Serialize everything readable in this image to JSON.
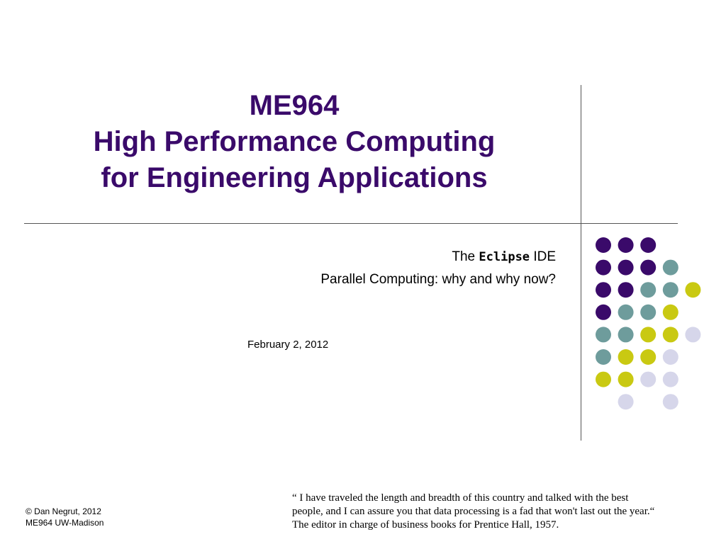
{
  "title": {
    "line1": "ME964",
    "line2": "High Performance Computing",
    "line3": "for Engineering Applications"
  },
  "subtitle": {
    "line1_prefix": "The ",
    "line1_mono": "Eclipse",
    "line1_suffix": " IDE",
    "line2": "Parallel Computing: why and why now?"
  },
  "date": "February 2, 2012",
  "footer": {
    "copyright": "© Dan Negrut, 2012",
    "course": "ME964 UW-Madison"
  },
  "quote": {
    "line1": "“ I have traveled the length and breadth of this country and talked with the best",
    "line2": "people, and I can assure you that data processing is a fad that won't last out the year.“",
    "line3": "The editor in charge of business books for Prentice Hall, 1957."
  },
  "colors": {
    "title": "#3a0a6a",
    "purple": "#3a0a6a",
    "teal": "#6e9c9c",
    "lime": "#c9c912",
    "lavender": "#d6d6ea"
  },
  "dot_grid": [
    [
      "purple",
      "purple",
      "purple",
      null,
      null
    ],
    [
      "purple",
      "purple",
      "purple",
      "teal",
      null
    ],
    [
      "purple",
      "purple",
      "teal",
      "teal",
      "lime"
    ],
    [
      "purple",
      "teal",
      "teal",
      "lime",
      null
    ],
    [
      "teal",
      "teal",
      "lime",
      "lime",
      "lavender"
    ],
    [
      "teal",
      "lime",
      "lime",
      "lavender",
      null
    ],
    [
      "lime",
      "lime",
      "lavender",
      "lavender",
      null
    ],
    [
      null,
      "lavender",
      null,
      "lavender",
      null
    ]
  ]
}
